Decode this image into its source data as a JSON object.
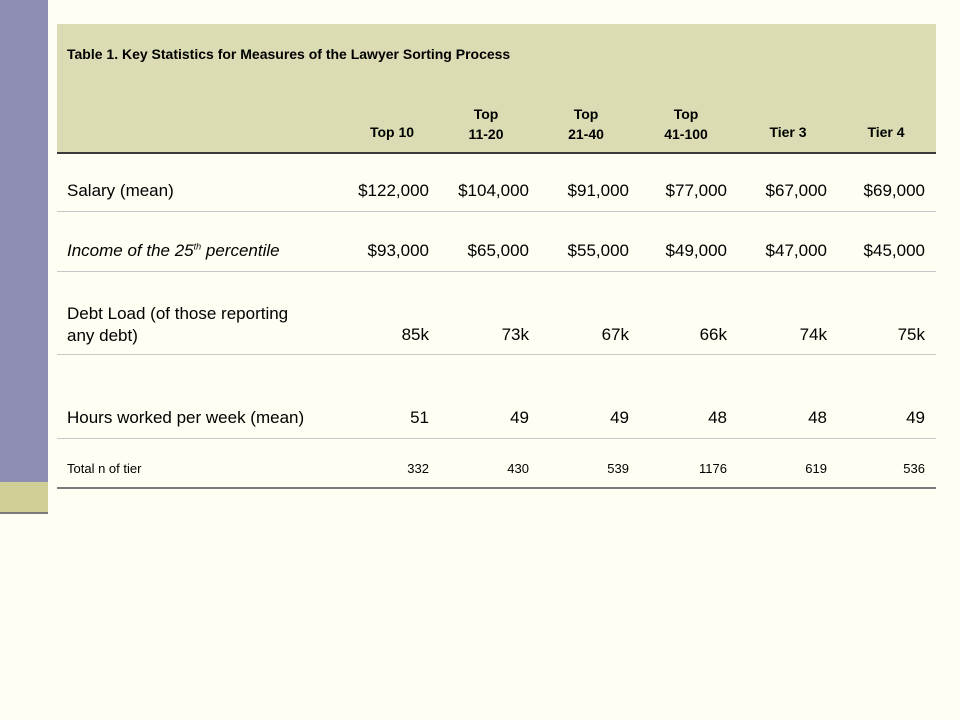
{
  "table": {
    "title": "Table 1. Key Statistics for Measures of the Lawyer Sorting Process",
    "columns": [
      {
        "line1": "Top 10",
        "line2": ""
      },
      {
        "line1": "Top",
        "line2": "11-20"
      },
      {
        "line1": "Top",
        "line2": "21-40"
      },
      {
        "line1": "Top",
        "line2": "41-100"
      },
      {
        "line1": "Tier 3",
        "line2": ""
      },
      {
        "line1": "Tier 4",
        "line2": ""
      }
    ],
    "rows": [
      {
        "label": "Salary (mean)",
        "values": [
          "$122,000",
          "$104,000",
          "$91,000",
          "$77,000",
          "$67,000",
          "$69,000"
        ]
      },
      {
        "label_prefix": "Income of the 25",
        "label_sup": "th",
        "label_suffix": " percentile",
        "values": [
          "$93,000",
          "$65,000",
          "$55,000",
          "$49,000",
          "$47,000",
          "$45,000"
        ]
      },
      {
        "label_line1": "Debt Load (of those reporting",
        "label_line2": "any debt)",
        "values": [
          "85k",
          "73k",
          "67k",
          "66k",
          "74k",
          "75k"
        ]
      },
      {
        "label": "Hours worked per week (mean)",
        "values": [
          "51",
          "49",
          "49",
          "48",
          "48",
          "49"
        ]
      },
      {
        "label": "Total n of tier",
        "values": [
          "332",
          "430",
          "539",
          "1176",
          "619",
          "536"
        ]
      }
    ]
  }
}
